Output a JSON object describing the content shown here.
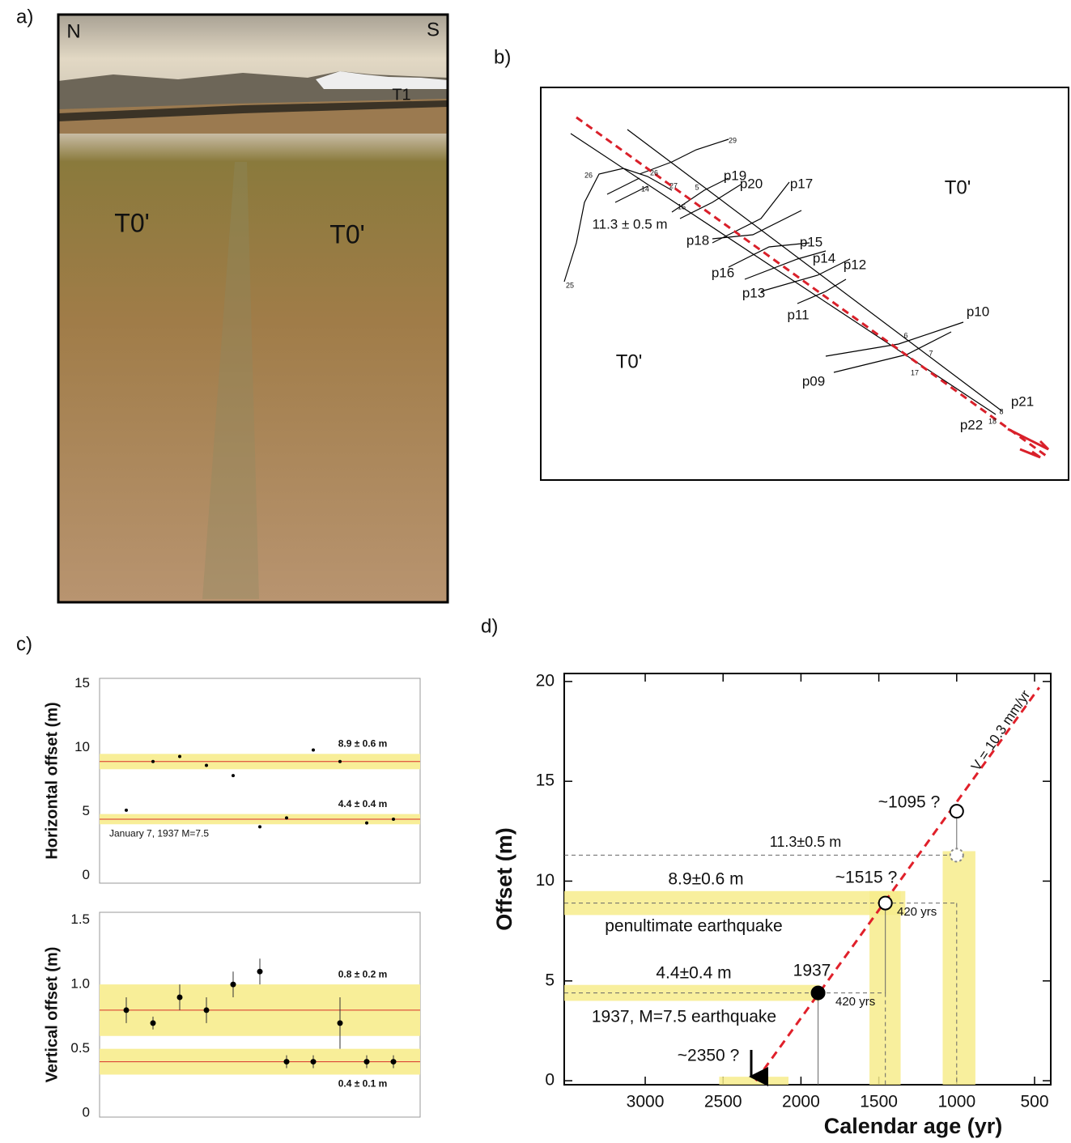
{
  "panels": {
    "a": "a)",
    "b": "b)",
    "c": "c)",
    "d": "d)"
  },
  "photo": {
    "labels": [
      "N",
      "S",
      "T1",
      "T0'",
      "T0'"
    ]
  },
  "map": {
    "labels": [
      "T0'",
      "T0'",
      "11.3 ± 0.5 m",
      "p19",
      "p20",
      "p17",
      "p18",
      "p16",
      "p15",
      "p14",
      "p12",
      "p13",
      "p11",
      "p10",
      "p09",
      "p21",
      "p22"
    ],
    "station_numbers": [
      "29",
      "26",
      "26",
      "14",
      "27",
      "5",
      "15",
      "25",
      "6",
      "7",
      "17",
      "8",
      "18"
    ]
  },
  "chart_data": [
    {
      "type": "scatter",
      "ylabel": "Horizontal offset (m)",
      "x": [
        1,
        2,
        3,
        4,
        5,
        6,
        7,
        8,
        9,
        10,
        11
      ],
      "xlim": [
        0,
        12
      ],
      "values": [
        5.1,
        8.9,
        9.3,
        8.6,
        7.8,
        3.8,
        4.5,
        9.8,
        8.9,
        4.1,
        4.4
      ],
      "color": "#000000",
      "ylim": [
        -0.6,
        15.4
      ],
      "yticks": [
        0,
        5,
        10,
        15
      ],
      "band_color": "#f8ee98",
      "line_color": "#d9302a",
      "bands": [
        {
          "value": 8.9,
          "error": 0.6,
          "label": "8.9 ± 0.6 m"
        },
        {
          "value": 4.4,
          "error": 0.4,
          "label": "4.4 ± 0.4 m"
        }
      ],
      "annotation": "January 7, 1937 M=7.5"
    },
    {
      "type": "scatter",
      "ylabel": "Vertical offset (m)",
      "x": [
        1,
        2,
        3,
        4,
        5,
        6,
        7,
        8,
        9,
        10,
        11
      ],
      "xlim": [
        0,
        12
      ],
      "values": [
        0.8,
        0.7,
        0.9,
        0.8,
        1.0,
        1.1,
        0.4,
        0.4,
        0.7,
        0.4,
        0.4
      ],
      "errors": [
        0.1,
        0.05,
        0.1,
        0.1,
        0.1,
        0.1,
        0.05,
        0.05,
        0.2,
        0.05,
        0.05
      ],
      "color": "#000000",
      "ylim": [
        -0.03,
        1.56
      ],
      "yticks": [
        0,
        0.5,
        {
          "value": 1,
          "label": "1.0"
        },
        1.5
      ],
      "band_color": "#f8ee98",
      "line_color": "#d9302a",
      "bands": [
        {
          "value": 0.8,
          "error": 0.2,
          "label": "0.8 ± 0.2 m"
        },
        {
          "value": 0.4,
          "error": 0.1,
          "label": "0.4 ± 0.1 m"
        }
      ]
    },
    {
      "type": "age-offset",
      "xlabel": "Calendar age (yr)",
      "ylabel": "Offset (m)",
      "xlim": [
        3520,
        396
      ],
      "xticks": [
        3000,
        2500,
        2000,
        1500,
        1000,
        500
      ],
      "ylim": [
        -0.2,
        20.4
      ],
      "yticks": [
        0,
        5,
        10,
        15,
        20
      ],
      "x": [
        1890,
        1458,
        1000,
        1000
      ],
      "values": [
        4.4,
        8.9,
        13.5,
        11.3
      ],
      "markers": [
        "filled",
        "open",
        "open",
        "dashed"
      ],
      "trend": {
        "x": [
          2290,
          470
        ],
        "values": [
          0,
          19.7
        ],
        "color": "#e0202a"
      },
      "band_color": "#f7ec8c",
      "bands": [
        {
          "x": [
            3520,
            1330
          ],
          "y": [
            8.3,
            9.5
          ]
        },
        {
          "x": [
            3520,
            1880
          ],
          "y": [
            4.0,
            4.8
          ]
        },
        {
          "x": [
            1560,
            1360
          ],
          "y": [
            -0.2,
            9.5
          ]
        },
        {
          "x": [
            1090,
            880
          ],
          "y": [
            -0.2,
            11.5
          ]
        },
        {
          "x": [
            2525,
            2080
          ],
          "y": [
            -0.2,
            0.2
          ]
        }
      ],
      "annotations": [
        "11.3±0.5 m",
        "8.9±0.6 m",
        "penultimate earthquake",
        "4.4±0.4 m",
        "1937",
        "1937, M=7.5 earthquake",
        "~1515 ?",
        "~1095 ?",
        "~2350 ?",
        "420 yrs",
        "420 yrs",
        "V = 10.3 mm/yr"
      ]
    }
  ]
}
